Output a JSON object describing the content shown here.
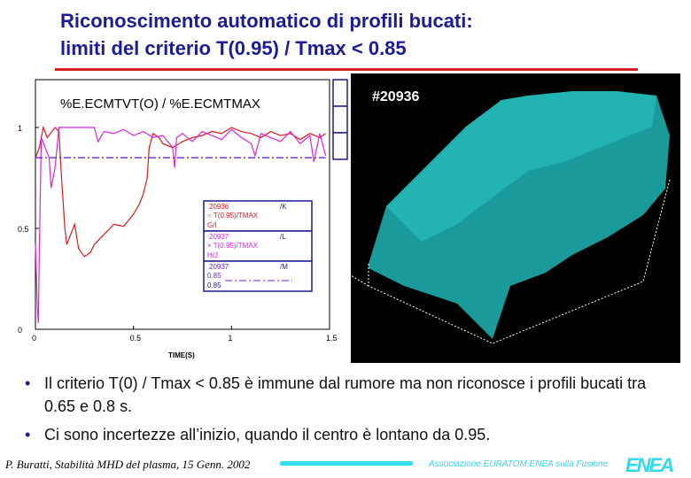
{
  "slide": {
    "title_line1": "Riconoscimento automatico di profili bucati:",
    "title_line2": "limiti del criterio T(0.95) / Tmax < 0.85",
    "bullets": [
      "Il criterio T(0) / Tmax < 0.85 è immune dal rumore ma non riconosce i profili bucati tra 0.65 e 0.8 s.",
      "Ci sono incertezze all’inizio, quando il centro è lontano da 0.95."
    ],
    "footer": "P. Buratti, Stabilità MHD del plasma, 15 Genn. 2002",
    "association": "Associazione EURATOM ENEA sulla Fusione",
    "logo": "ENEA",
    "surface_label": "#20936",
    "colors": {
      "title": "#1c1c96",
      "rule": "#d42020",
      "accent": "#33d8ec",
      "surface": "#1a9a9a"
    }
  },
  "chart_data": {
    "type": "line",
    "title": "%E.ECMTVT(O) / %E.ECMTMAX",
    "xlabel": "TIME(S)",
    "ylabel": "",
    "xlim": [
      0,
      1.5
    ],
    "ylim": [
      0,
      1.08
    ],
    "xticks": [
      "0",
      "0.5",
      "1",
      "1.5"
    ],
    "yticks": [
      "0",
      "0.5",
      "1"
    ],
    "legend_placement": "center-right",
    "legend": [
      {
        "shot": "20936",
        "label": "○ T(0.95)/TMAX",
        "code": "G/I",
        "tag": "/K",
        "color": "#e01818"
      },
      {
        "shot": "20937",
        "label": "× T(0.95)/TMAX",
        "code": "H/J",
        "tag": "/L",
        "color": "#e020e0"
      },
      {
        "shot": "20937",
        "label": "0.85",
        "code": "0.85",
        "tag": "/M",
        "color": "#7020d0"
      }
    ],
    "series": [
      {
        "name": "20936",
        "color": "#e01818",
        "x": [
          0,
          0.02,
          0.04,
          0.06,
          0.1,
          0.12,
          0.13,
          0.15,
          0.16,
          0.18,
          0.2,
          0.22,
          0.25,
          0.28,
          0.3,
          0.35,
          0.4,
          0.45,
          0.5,
          0.53,
          0.55,
          0.57,
          0.58,
          0.6,
          0.63,
          0.65,
          0.7,
          0.75,
          0.8,
          0.85,
          0.9,
          0.95,
          1.0,
          1.05,
          1.1,
          1.15,
          1.2,
          1.25,
          1.3,
          1.35,
          1.4,
          1.45,
          1.48
        ],
        "y": [
          0.85,
          0.9,
          1.0,
          0.95,
          1.0,
          0.98,
          0.8,
          0.5,
          0.42,
          0.47,
          0.52,
          0.4,
          0.36,
          0.38,
          0.42,
          0.47,
          0.52,
          0.51,
          0.57,
          0.62,
          0.67,
          0.75,
          0.9,
          0.97,
          0.95,
          0.92,
          0.9,
          0.93,
          0.95,
          0.96,
          0.98,
          0.97,
          1.0,
          0.98,
          0.97,
          0.95,
          0.98,
          0.96,
          0.97,
          0.94,
          0.97,
          0.95,
          0.97
        ]
      },
      {
        "name": "20937",
        "color": "#e020e0",
        "x": [
          0,
          0.01,
          0.015,
          0.02,
          0.03,
          0.05,
          0.07,
          0.08,
          0.1,
          0.12,
          0.3,
          0.32,
          0.35,
          0.4,
          0.45,
          0.5,
          0.55,
          0.6,
          0.65,
          0.7,
          0.71,
          0.72,
          0.75,
          0.8,
          0.85,
          0.9,
          0.95,
          1.0,
          1.05,
          1.1,
          1.12,
          1.15,
          1.2,
          1.25,
          1.3,
          1.35,
          1.4,
          1.42,
          1.45,
          1.48
        ],
        "y": [
          0.42,
          0.1,
          0.03,
          0.4,
          0.95,
          0.9,
          0.85,
          0.7,
          0.8,
          1.0,
          1.0,
          0.93,
          0.98,
          0.97,
          0.99,
          0.96,
          0.98,
          0.95,
          0.96,
          0.9,
          0.8,
          0.95,
          0.97,
          0.93,
          0.98,
          0.96,
          0.94,
          0.99,
          0.95,
          0.92,
          0.86,
          0.97,
          0.95,
          0.93,
          0.98,
          0.92,
          0.96,
          0.83,
          0.97,
          0.86
        ]
      },
      {
        "name": "0.85",
        "color": "#7020d0",
        "dash": true,
        "x": [
          0,
          1.48
        ],
        "y": [
          0.85,
          0.85
        ]
      }
    ]
  }
}
